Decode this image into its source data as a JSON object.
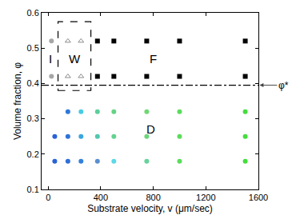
{
  "chart_data": {
    "type": "scatter",
    "x_label": "Substrate velocity, v (μm/sec)",
    "y_label": "Volume fraction, φ",
    "xlim": [
      -50,
      1600
    ],
    "xticks": [
      0,
      400,
      800,
      1200,
      1600
    ],
    "ylim": [
      0.1,
      0.6
    ],
    "yticks": [
      0.1,
      0.2,
      0.3,
      0.4,
      0.5,
      0.6
    ],
    "grid": false,
    "series": [
      {
        "marker": "circle",
        "color": "#a6a6a6",
        "x": [
          25,
          25
        ],
        "values": [
          0.42,
          0.52
        ]
      },
      {
        "marker": "triangle-up-open",
        "color": "#8c8c8c",
        "x": [
          150,
          250,
          150,
          250
        ],
        "values": [
          0.42,
          0.42,
          0.52,
          0.52
        ]
      },
      {
        "marker": "square",
        "color": "#000000",
        "x": [
          375,
          500,
          750,
          1000,
          1500,
          375,
          500,
          750,
          1000,
          1500
        ],
        "values": [
          0.42,
          0.42,
          0.42,
          0.42,
          0.42,
          0.52,
          0.52,
          0.52,
          0.52,
          0.52
        ]
      },
      {
        "marker": "circle",
        "x": [
          150,
          250,
          375,
          500,
          750,
          1000,
          1500,
          50,
          150,
          250,
          375,
          500,
          750,
          1000,
          1500,
          50,
          150,
          250,
          375,
          500,
          750,
          1000,
          1500
        ],
        "values": [
          0.32,
          0.32,
          0.32,
          0.32,
          0.32,
          0.32,
          0.32,
          0.25,
          0.25,
          0.25,
          0.25,
          0.25,
          0.25,
          0.25,
          0.25,
          0.18,
          0.18,
          0.18,
          0.18,
          0.18,
          0.18,
          0.18,
          0.18
        ],
        "colors": [
          "#2f78d8",
          "#48cbe6",
          "#5ccf9a",
          "#66d384",
          "#6fd873",
          "#5cdc5c",
          "#44dd3c",
          "#2a62d6",
          "#2e72d8",
          "#3aa6e0",
          "#52c8b0",
          "#62d290",
          "#6cd67a",
          "#5cdc5c",
          "#44dd3c",
          "#2a62d6",
          "#2e6ed8",
          "#3380db",
          "#5a8fd0",
          "#5cd8e8",
          "#66d39a",
          "#5cdc5c",
          "#44dd3c"
        ]
      }
    ],
    "annotations": [
      {
        "text": "I",
        "x": 15,
        "y": 0.47
      },
      {
        "text": "W",
        "x": 200,
        "y": 0.47
      },
      {
        "text": "F",
        "x": 800,
        "y": 0.47
      },
      {
        "text": "D",
        "x": 780,
        "y": 0.27
      }
    ],
    "reference_lines": [
      {
        "y": 0.395,
        "label": "φ*",
        "line_style": "dashdot"
      }
    ],
    "boxes": [
      {
        "x": [
          75,
          325
        ],
        "y": [
          0.38,
          0.575
        ],
        "line_style": "dash"
      }
    ]
  }
}
